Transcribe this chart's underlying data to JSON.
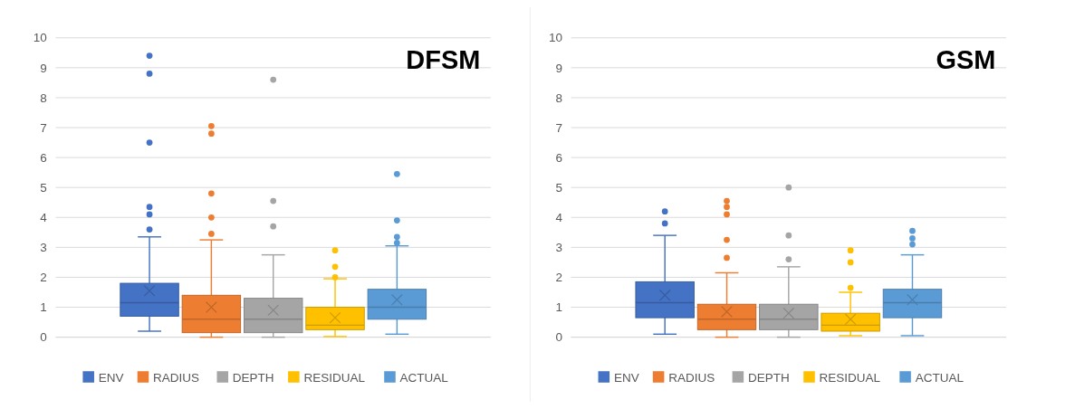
{
  "chart_data": [
    {
      "type": "box",
      "title": "DFSM",
      "categories": [
        null
      ],
      "ylim": [
        0,
        10
      ],
      "yticks": [
        0,
        1,
        2,
        3,
        4,
        5,
        6,
        7,
        8,
        9,
        10
      ],
      "grid": "y",
      "legend": "bottom",
      "marker": "circle",
      "series": [
        {
          "name": "ENV",
          "color": "#4472c4",
          "boxes": [
            {
              "low": 0.2,
              "q1": 0.7,
              "median": 1.15,
              "q3": 1.8,
              "high": 3.35,
              "mean": 1.55,
              "outliers": [
                3.6,
                4.1,
                4.35,
                6.5,
                8.8,
                9.4
              ]
            }
          ]
        },
        {
          "name": "RADIUS",
          "color": "#ed7d31",
          "boxes": [
            {
              "low": 0,
              "q1": 0.15,
              "median": 0.6,
              "q3": 1.4,
              "high": 3.25,
              "mean": 1.0,
              "outliers": [
                3.45,
                4.0,
                4.8,
                6.8,
                7.05
              ]
            }
          ]
        },
        {
          "name": "DEPTH",
          "color": "#a5a5a5",
          "boxes": [
            {
              "low": 0,
              "q1": 0.15,
              "median": 0.6,
              "q3": 1.3,
              "high": 2.75,
              "mean": 0.9,
              "outliers": [
                3.7,
                4.55,
                8.6
              ]
            }
          ]
        },
        {
          "name": "RESIDUAL",
          "color": "#ffc000",
          "boxes": [
            {
              "low": 0.02,
              "q1": 0.25,
              "median": 0.4,
              "q3": 1.0,
              "high": 1.95,
              "mean": 0.65,
              "outliers": [
                2.0,
                2.35,
                2.9
              ]
            }
          ]
        },
        {
          "name": "ACTUAL",
          "color": "#5b9bd5",
          "boxes": [
            {
              "low": 0.1,
              "q1": 0.6,
              "median": 1.0,
              "q3": 1.6,
              "high": 3.05,
              "mean": 1.25,
              "outliers": [
                3.15,
                3.35,
                3.9,
                5.45
              ]
            }
          ]
        }
      ]
    },
    {
      "type": "box",
      "title": "GSM",
      "categories": [
        null
      ],
      "ylim": [
        0,
        10
      ],
      "yticks": [
        0,
        1,
        2,
        3,
        4,
        5,
        6,
        7,
        8,
        9,
        10
      ],
      "grid": "y",
      "legend": "bottom",
      "marker": "circle",
      "series": [
        {
          "name": "ENV",
          "color": "#4472c4",
          "boxes": [
            {
              "low": 0.1,
              "q1": 0.65,
              "median": 1.15,
              "q3": 1.85,
              "high": 3.4,
              "mean": 1.4,
              "outliers": [
                3.8,
                4.2
              ]
            }
          ]
        },
        {
          "name": "RADIUS",
          "color": "#ed7d31",
          "boxes": [
            {
              "low": 0,
              "q1": 0.25,
              "median": 0.6,
              "q3": 1.1,
              "high": 2.15,
              "mean": 0.85,
              "outliers": [
                2.65,
                3.25,
                4.1,
                4.35,
                4.55
              ]
            }
          ]
        },
        {
          "name": "DEPTH",
          "color": "#a5a5a5",
          "boxes": [
            {
              "low": 0,
              "q1": 0.25,
              "median": 0.6,
              "q3": 1.1,
              "high": 2.35,
              "mean": 0.8,
              "outliers": [
                2.6,
                3.4,
                5.0
              ]
            }
          ]
        },
        {
          "name": "RESIDUAL",
          "color": "#ffc000",
          "boxes": [
            {
              "low": 0.05,
              "q1": 0.2,
              "median": 0.4,
              "q3": 0.8,
              "high": 1.5,
              "mean": 0.6,
              "outliers": [
                1.65,
                2.5,
                2.9
              ]
            }
          ]
        },
        {
          "name": "ACTUAL",
          "color": "#5b9bd5",
          "boxes": [
            {
              "low": 0.05,
              "q1": 0.65,
              "median": 1.15,
              "q3": 1.6,
              "high": 2.75,
              "mean": 1.25,
              "outliers": [
                3.1,
                3.3,
                3.55
              ]
            }
          ]
        }
      ]
    }
  ]
}
